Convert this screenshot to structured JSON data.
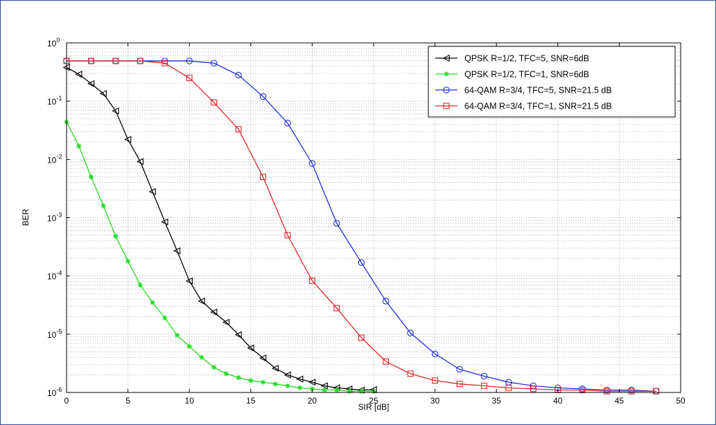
{
  "chart_data": {
    "type": "line",
    "title": "",
    "xlabel": "SIR [dB]",
    "ylabel": "BER",
    "xlim": [
      0,
      50
    ],
    "ylim": [
      1e-06,
      1
    ],
    "yscale": "log",
    "grid": true,
    "legend_placement": "top-right",
    "x_ticks": [
      "0",
      "5",
      "10",
      "15",
      "20",
      "25",
      "30",
      "35",
      "40",
      "45",
      "50"
    ],
    "y_ticks": [
      {
        "base": "10",
        "exp": "0"
      },
      {
        "base": "10",
        "exp": "-1"
      },
      {
        "base": "10",
        "exp": "-2"
      },
      {
        "base": "10",
        "exp": "-3"
      },
      {
        "base": "10",
        "exp": "-4"
      },
      {
        "base": "10",
        "exp": "-5"
      },
      {
        "base": "10",
        "exp": "-6"
      }
    ],
    "series": [
      {
        "name": "QPSK R=1/2, TFC=5, SNR=6dB",
        "color": "#000000",
        "marker": "triangle-left",
        "x": [
          0,
          1,
          2,
          3,
          4,
          5,
          6,
          7,
          8,
          9,
          10,
          11,
          12,
          13,
          14,
          15,
          16,
          17,
          18,
          19,
          20,
          21,
          22,
          23,
          24,
          25
        ],
        "y": [
          0.38,
          0.29,
          0.2,
          0.135,
          0.068,
          0.022,
          0.0092,
          0.0028,
          0.00085,
          0.00027,
          8.2e-05,
          3.7e-05,
          2.4e-05,
          1.6e-05,
          9.8e-06,
          5.8e-06,
          3.9e-06,
          2.6e-06,
          2e-06,
          1.7e-06,
          1.5e-06,
          1.3e-06,
          1.2e-06,
          1.15e-06,
          1.1e-06,
          1.12e-06
        ]
      },
      {
        "name": "QPSK R=1/2, TFC=1, SNR=6dB",
        "color": "#22dd22",
        "marker": "star",
        "x": [
          0,
          1,
          2,
          3,
          4,
          5,
          6,
          7,
          8,
          9,
          10,
          11,
          12,
          13,
          14,
          15,
          16,
          17,
          18,
          19,
          20,
          21,
          22,
          23,
          24,
          25
        ],
        "y": [
          0.044,
          0.017,
          0.005,
          0.0016,
          0.00048,
          0.00018,
          7e-05,
          3.5e-05,
          1.9e-05,
          9.6e-06,
          6.2e-06,
          4e-06,
          2.7e-06,
          2.1e-06,
          1.8e-06,
          1.6e-06,
          1.5e-06,
          1.4e-06,
          1.3e-06,
          1.2e-06,
          1.15e-06,
          1.1e-06,
          1.1e-06,
          1.05e-06,
          1.05e-06,
          1.05e-06
        ]
      },
      {
        "name": "64-QAM R=3/4, TFC=5, SNR=21.5 dB",
        "color": "#1f2fd8",
        "marker": "circle",
        "x": [
          0,
          2,
          4,
          6,
          8,
          10,
          12,
          14,
          16,
          18,
          20,
          22,
          24,
          26,
          28,
          30,
          32,
          34,
          36,
          38,
          40,
          42,
          44,
          46,
          48
        ],
        "y": [
          0.49,
          0.49,
          0.49,
          0.49,
          0.49,
          0.49,
          0.45,
          0.28,
          0.12,
          0.042,
          0.0085,
          0.0008,
          0.00017,
          3.7e-05,
          1.05e-05,
          4.6e-06,
          2.5e-06,
          1.9e-06,
          1.5e-06,
          1.3e-06,
          1.2e-06,
          1.15e-06,
          1.1e-06,
          1.1e-06,
          1.05e-06
        ]
      },
      {
        "name": "64-QAM R=3/4, TFC=1, SNR=21.5 dB",
        "color": "#e0262a",
        "marker": "square",
        "x": [
          0,
          2,
          4,
          6,
          8,
          10,
          12,
          14,
          16,
          18,
          20,
          22,
          24,
          26,
          28,
          30,
          32,
          34,
          36,
          38,
          40,
          42,
          44,
          46,
          48
        ],
        "y": [
          0.49,
          0.49,
          0.49,
          0.49,
          0.45,
          0.25,
          0.095,
          0.033,
          0.005,
          0.0005,
          8.3e-05,
          2.8e-05,
          8.7e-06,
          3.4e-06,
          2.1e-06,
          1.6e-06,
          1.4e-06,
          1.3e-06,
          1.2e-06,
          1.15e-06,
          1.1e-06,
          1.1e-06,
          1.05e-06,
          1.05e-06,
          1.05e-06
        ]
      }
    ]
  }
}
